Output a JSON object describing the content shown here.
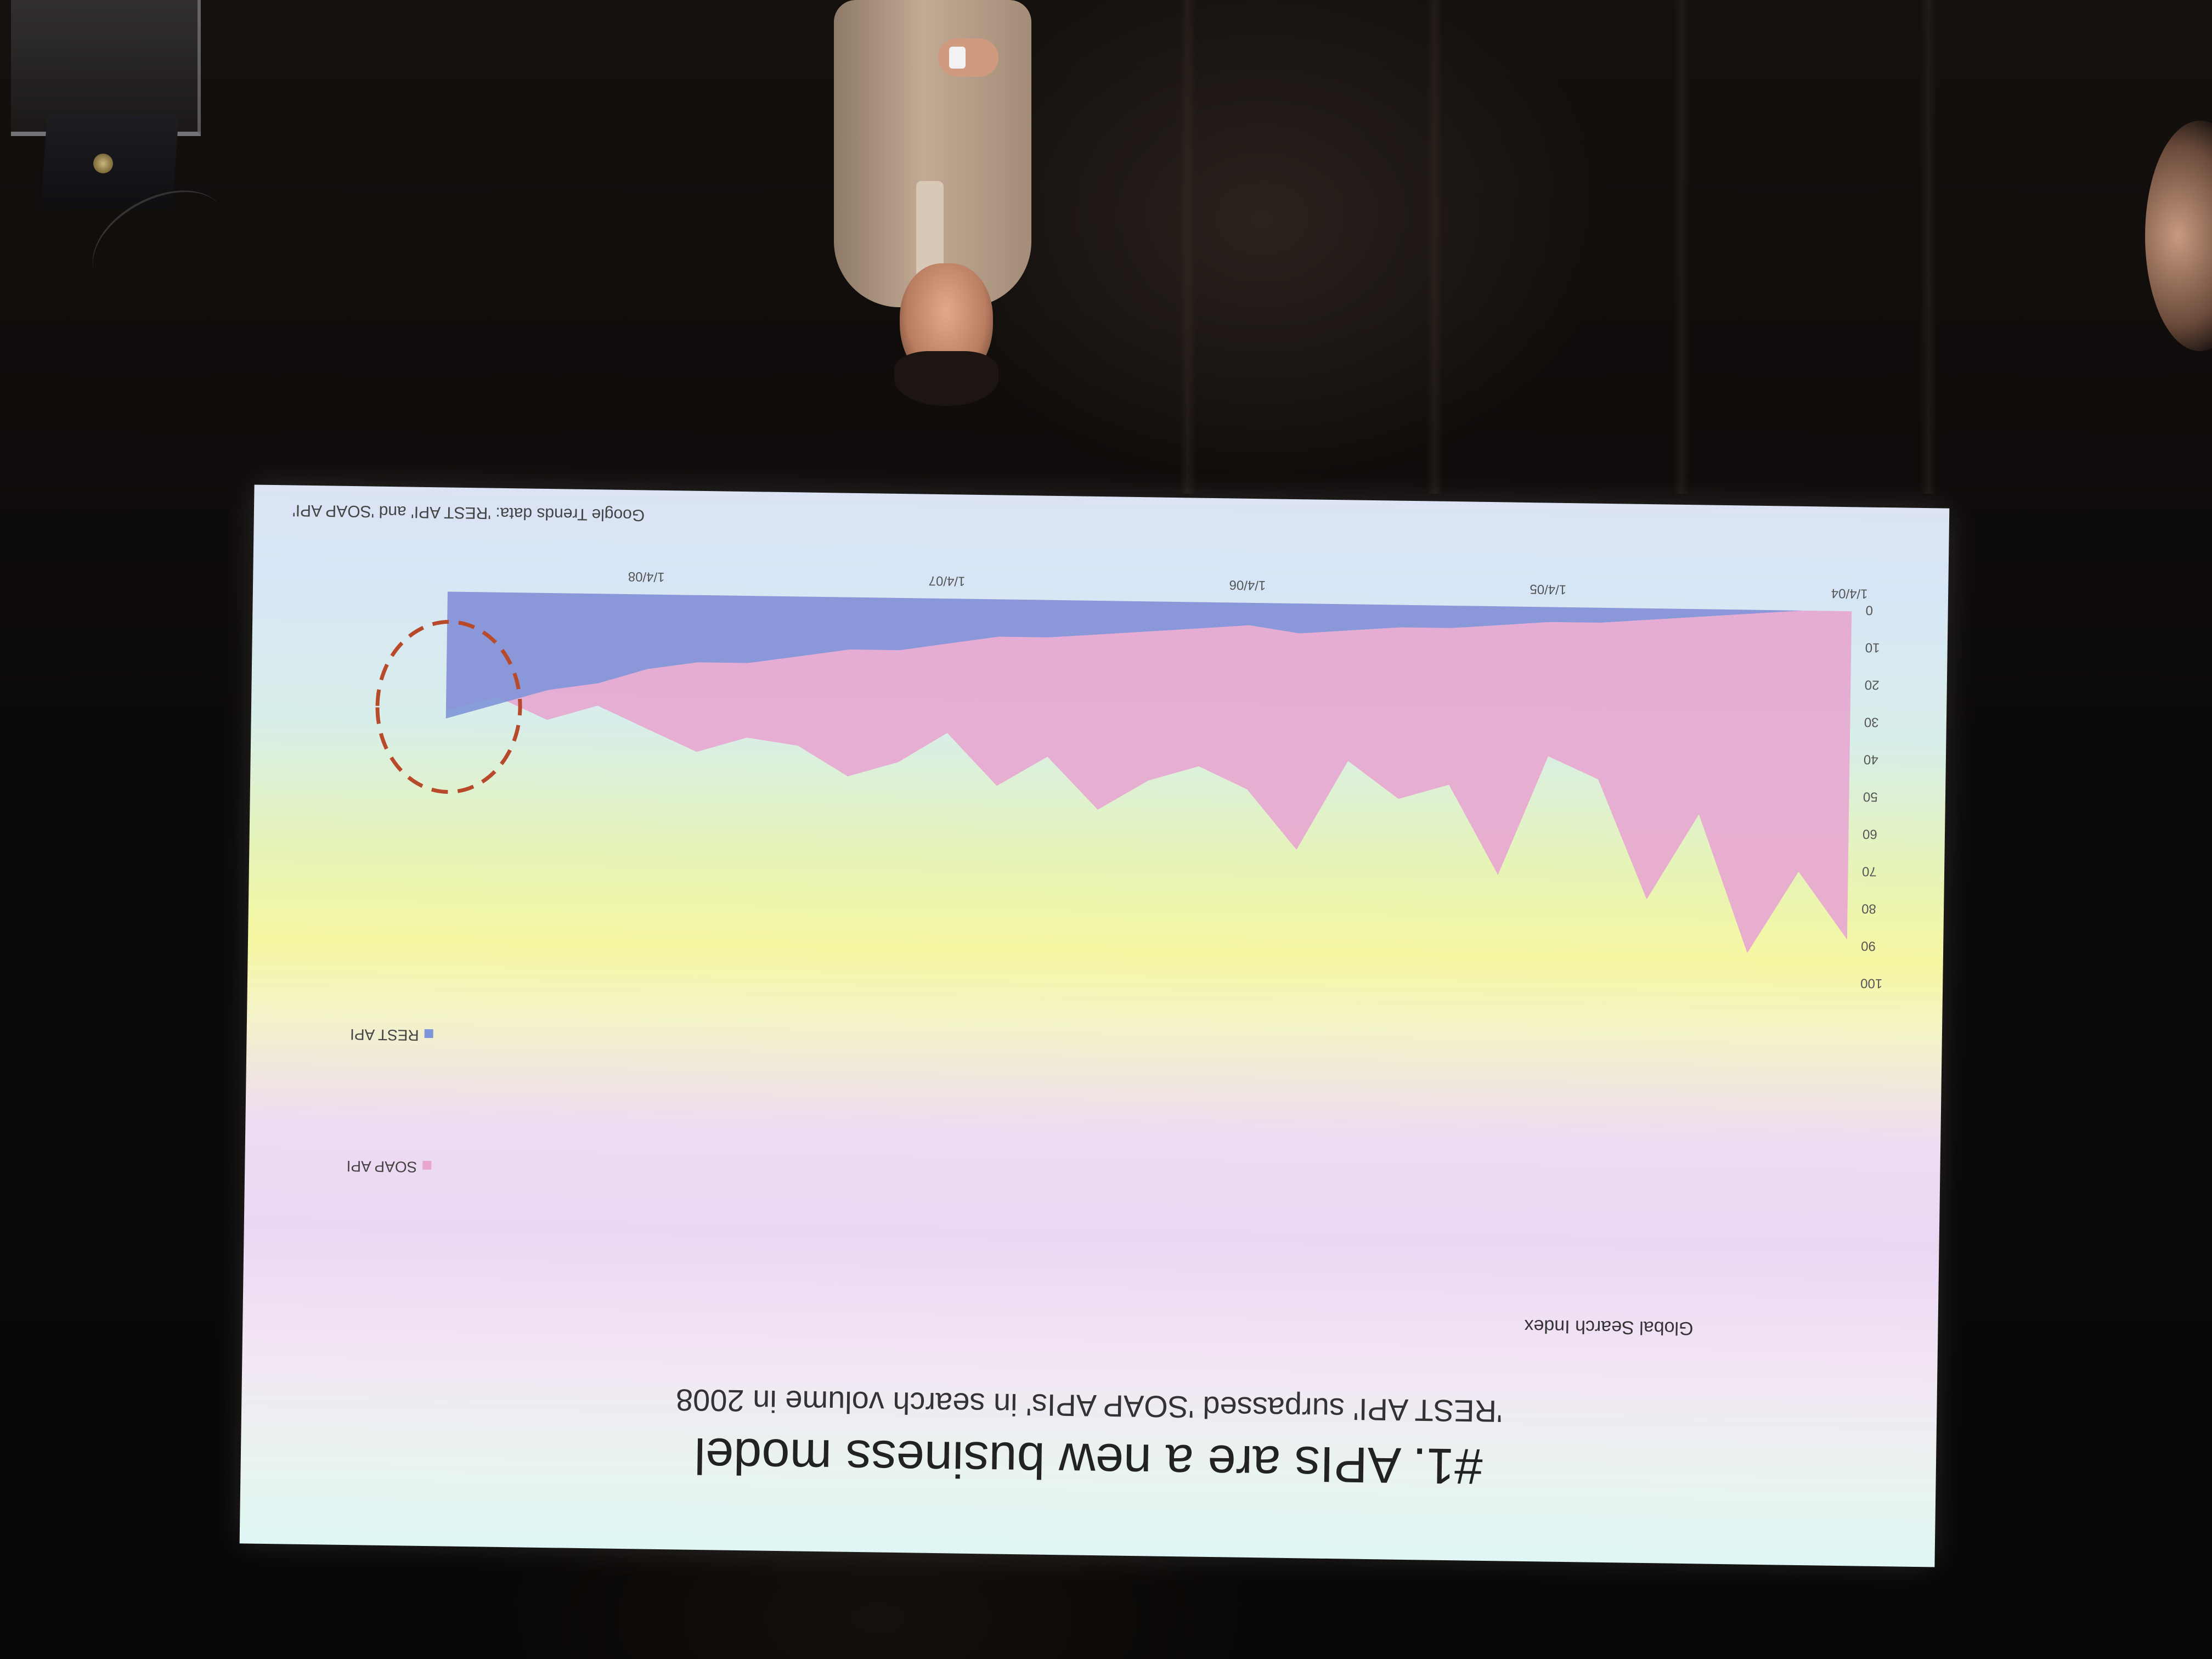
{
  "slide": {
    "title": "#1. APIs are a new business model",
    "subtitle": "'REST API' surpassed 'SOAP APIs' in search volume in 2008",
    "footer": "Google Trends data: 'REST API' and 'SOAP API'"
  },
  "chart_data": {
    "type": "area",
    "title": "",
    "xlabel": "",
    "ylabel": "Global Search Index",
    "ylim": [
      0,
      100
    ],
    "y_ticks": [
      "0",
      "10",
      "20",
      "30",
      "40",
      "50",
      "60",
      "70",
      "80",
      "90",
      "100"
    ],
    "x_ticks": [
      "1/4/04",
      "1/4/05",
      "1/4/06",
      "1/4/07",
      "1/4/08"
    ],
    "x_range": [
      "2004-01-04",
      "2008-10-01"
    ],
    "legend_position": "right",
    "series": [
      {
        "name": "SOAP API",
        "color": "#e7a6d0",
        "x": [
          "2004-01",
          "2004-03",
          "2004-05",
          "2004-07",
          "2004-09",
          "2004-11",
          "2005-01",
          "2005-03",
          "2005-05",
          "2005-07",
          "2005-09",
          "2005-11",
          "2006-01",
          "2006-03",
          "2006-05",
          "2006-07",
          "2006-09",
          "2006-11",
          "2007-01",
          "2007-03",
          "2007-05",
          "2007-07",
          "2007-09",
          "2007-11",
          "2008-01",
          "2008-03",
          "2008-05",
          "2008-07",
          "2008-09"
        ],
        "values": [
          88,
          70,
          92,
          55,
          78,
          46,
          40,
          72,
          48,
          52,
          42,
          66,
          50,
          44,
          48,
          56,
          42,
          50,
          36,
          44,
          48,
          40,
          38,
          42,
          36,
          30,
          34,
          28,
          32
        ]
      },
      {
        "name": "REST API",
        "color": "#7f95d9",
        "x": [
          "2004-01",
          "2004-03",
          "2004-05",
          "2004-07",
          "2004-09",
          "2004-11",
          "2005-01",
          "2005-03",
          "2005-05",
          "2005-07",
          "2005-09",
          "2005-11",
          "2006-01",
          "2006-03",
          "2006-05",
          "2006-07",
          "2006-09",
          "2006-11",
          "2007-01",
          "2007-03",
          "2007-05",
          "2007-07",
          "2007-09",
          "2007-11",
          "2008-01",
          "2008-03",
          "2008-05",
          "2008-07",
          "2008-09"
        ],
        "values": [
          0,
          0,
          1,
          2,
          3,
          4,
          4,
          5,
          6,
          6,
          7,
          8,
          6,
          7,
          8,
          9,
          10,
          10,
          12,
          14,
          14,
          16,
          18,
          18,
          20,
          24,
          26,
          30,
          34
        ]
      }
    ],
    "annotation": "dashed circle around late-2008 region"
  }
}
